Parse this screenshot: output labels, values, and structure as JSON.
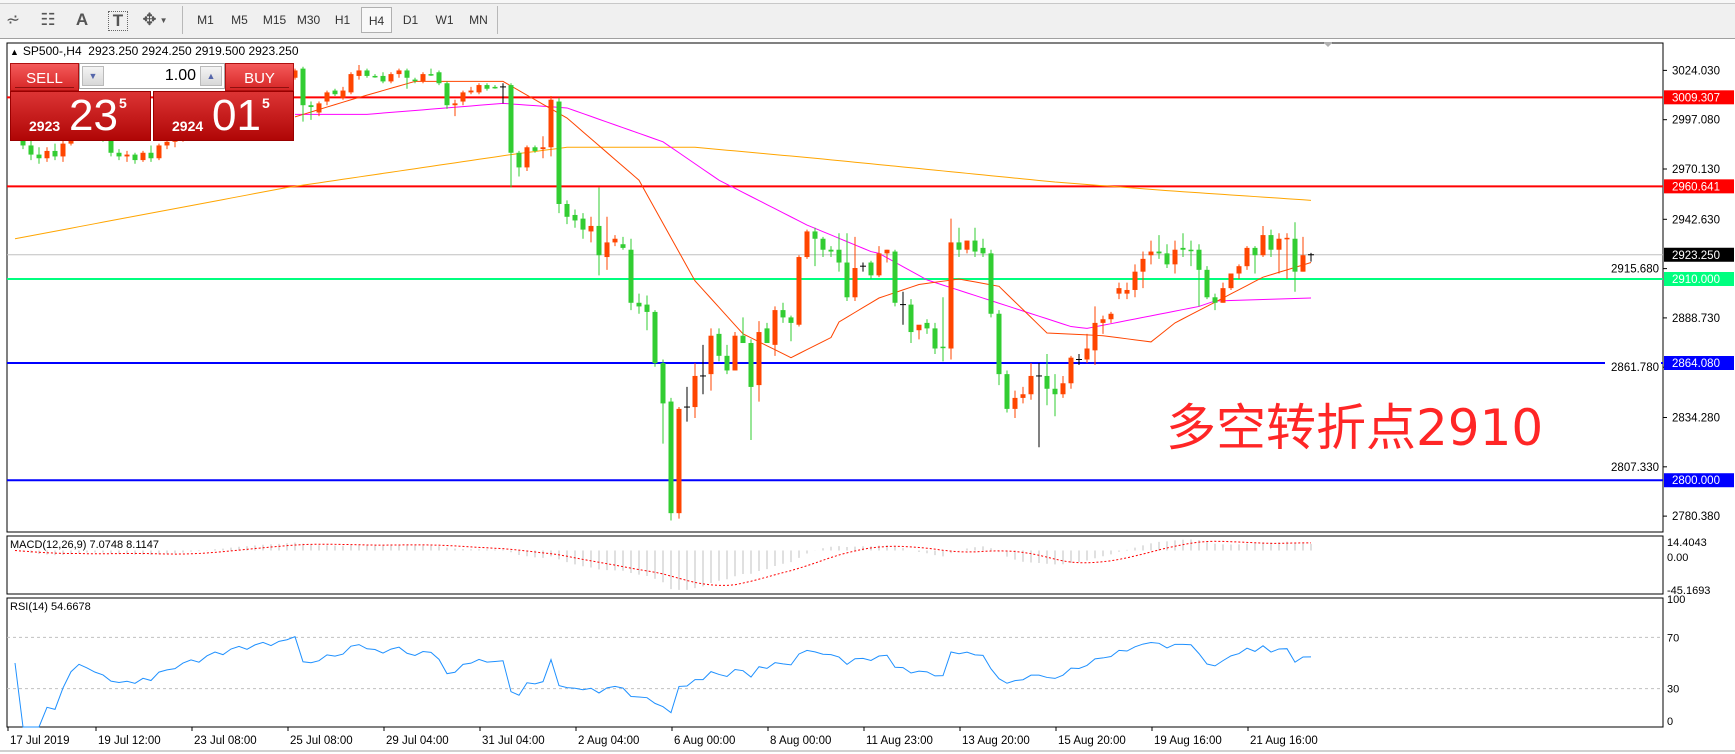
{
  "toolbar": {
    "tools": [
      {
        "icon": "elliott-wave-icon",
        "glyph": "⩫"
      },
      {
        "icon": "fibonacci-grid-icon",
        "glyph": "☷"
      },
      {
        "icon": "text-label-icon",
        "glyph": "A"
      },
      {
        "icon": "text-box-icon",
        "glyph": "T"
      },
      {
        "icon": "arrows-dropdown-icon",
        "glyph": "✥"
      }
    ],
    "timeframes": [
      "M1",
      "M5",
      "M15",
      "M30",
      "H1",
      "H4",
      "D1",
      "W1",
      "MN"
    ],
    "active_timeframe": "H4"
  },
  "chart_header": {
    "symbol": "SP500-,H4",
    "ohlc": "2923.250 2924.250 2919.500 2923.250"
  },
  "trade_panel": {
    "sell_label": "SELL",
    "buy_label": "BUY",
    "lot": "1.00",
    "sell": {
      "prefix": "2923",
      "big": "23",
      "sup": "5"
    },
    "buy": {
      "prefix": "2924",
      "big": "01",
      "sup": "5"
    }
  },
  "annotation": "多空转折点2910",
  "chart_data": {
    "type": "candlestick",
    "colors": {
      "bull": "#FF4500",
      "bear": "#32CD32",
      "doji": "#000000"
    },
    "ylim": [
      2771.7,
      3039.0
    ],
    "candles": [
      [
        3002,
        3008,
        2996,
        2998
      ],
      [
        2998,
        2999,
        2981,
        2983
      ],
      [
        2983,
        2986,
        2975,
        2978
      ],
      [
        2978,
        2982,
        2973,
        2976
      ],
      [
        2976,
        2982,
        2974,
        2980
      ],
      [
        2980,
        2984,
        2975,
        2977
      ],
      [
        2977,
        2986,
        2974,
        2984
      ],
      [
        2984,
        2994,
        2983,
        2992
      ],
      [
        2992,
        2999,
        2989,
        2997
      ],
      [
        2997,
        3000,
        2991,
        2994
      ],
      [
        2994,
        2996,
        2988,
        2990
      ],
      [
        2990,
        2992,
        2985,
        2987
      ],
      [
        2987,
        2988,
        2977,
        2979
      ],
      [
        2979,
        2981,
        2975,
        2977
      ],
      [
        2977,
        2980,
        2974,
        2978
      ],
      [
        2978,
        2979,
        2973,
        2975
      ],
      [
        2975,
        2980,
        2974,
        2979
      ],
      [
        2979,
        2983,
        2974,
        2976
      ],
      [
        2976,
        2984,
        2975,
        2983
      ],
      [
        2983,
        2987,
        2981,
        2985
      ],
      [
        2985,
        2988,
        2982,
        2986
      ],
      [
        2986,
        2993,
        2985,
        2991
      ],
      [
        2991,
        2996,
        2988,
        2994
      ],
      [
        2994,
        2998,
        2990,
        2992
      ],
      [
        2992,
        3000,
        2991,
        2998
      ],
      [
        2998,
        3004,
        2996,
        3002
      ],
      [
        3002,
        3006,
        2998,
        3000
      ],
      [
        3000,
        3008,
        2999,
        3006
      ],
      [
        3006,
        3011,
        3003,
        3009
      ],
      [
        3009,
        3013,
        3005,
        3007
      ],
      [
        3007,
        3014,
        3006,
        3012
      ],
      [
        3012,
        3017,
        3009,
        3015
      ],
      [
        3015,
        3019,
        3011,
        3013
      ],
      [
        3013,
        3020,
        3012,
        3018
      ],
      [
        3018,
        3022,
        3015,
        3020
      ],
      [
        3020,
        3025,
        3019,
        3024
      ],
      [
        3025,
        3026,
        2996,
        3005
      ],
      [
        3005,
        3007,
        2997,
        3004
      ],
      [
        3001,
        3007,
        2999,
        3006
      ],
      [
        3007,
        3013,
        3005,
        3012
      ],
      [
        3013,
        3014,
        3010,
        3011
      ],
      [
        3009,
        3015,
        3008,
        3013
      ],
      [
        3012,
        3023,
        3011,
        3022
      ],
      [
        3021,
        3027,
        3019,
        3024
      ],
      [
        3024,
        3025,
        3020,
        3021
      ],
      [
        3021,
        3022,
        3020,
        3020.5
      ],
      [
        3021,
        3023,
        3017,
        3018
      ],
      [
        3018,
        3023,
        3017,
        3022
      ],
      [
        3022,
        3025,
        3020,
        3024
      ],
      [
        3024,
        3025,
        3014,
        3020
      ],
      [
        3019,
        3020,
        3017,
        3018.5
      ],
      [
        3018,
        3023,
        3017,
        3022
      ],
      [
        3022,
        3025,
        3021,
        3021.5
      ],
      [
        3023,
        3024,
        3016,
        3017
      ],
      [
        3017,
        3018,
        3003,
        3005
      ],
      [
        3005,
        3008,
        2999,
        3006
      ],
      [
        3007,
        3013,
        3005,
        3012
      ],
      [
        3012,
        3015,
        3011,
        3013
      ],
      [
        3012,
        3017,
        3011,
        3016
      ],
      [
        3016,
        3017,
        3013,
        3014
      ],
      [
        3015,
        3016,
        3014,
        3014.5
      ],
      [
        3015,
        3017,
        3006,
        3015
      ],
      [
        3016,
        3017,
        2960,
        2979
      ],
      [
        2979,
        2980,
        2966,
        2971
      ],
      [
        2971,
        2983,
        2969,
        2982
      ],
      [
        2982,
        2983,
        2979,
        2980
      ],
      [
        2981,
        2988,
        2976,
        2982
      ],
      [
        2982,
        3010,
        2977,
        3008
      ],
      [
        3007,
        3009,
        2946,
        2951
      ],
      [
        2951,
        2953,
        2940,
        2944
      ],
      [
        2945,
        2948,
        2938,
        2942
      ],
      [
        2943,
        2946,
        2932,
        2937
      ],
      [
        2936,
        2944,
        2930,
        2939
      ],
      [
        2939,
        2960,
        2912,
        2923
      ],
      [
        2922,
        2944,
        2915,
        2930
      ],
      [
        2930,
        2934,
        2928,
        2932
      ],
      [
        2929,
        2933,
        2926,
        2927
      ],
      [
        2926,
        2932,
        2893,
        2897
      ],
      [
        2897,
        2902,
        2891,
        2895
      ],
      [
        2896,
        2901,
        2882,
        2892
      ],
      [
        2892,
        2893,
        2862,
        2864
      ],
      [
        2864,
        2866,
        2820,
        2842
      ],
      [
        2843,
        2845,
        2778,
        2782
      ],
      [
        2782,
        2840,
        2779,
        2839
      ],
      [
        2840,
        2851,
        2832,
        2840
      ],
      [
        2840,
        2864,
        2834,
        2857
      ],
      [
        2857,
        2874,
        2847,
        2857
      ],
      [
        2858,
        2883,
        2849,
        2879
      ],
      [
        2880,
        2883,
        2865,
        2868
      ],
      [
        2868,
        2874,
        2858,
        2860
      ],
      [
        2860,
        2881,
        2860,
        2879
      ],
      [
        2879,
        2889,
        2875,
        2875
      ],
      [
        2875,
        2877,
        2822,
        2851
      ],
      [
        2852,
        2887,
        2843,
        2881
      ],
      [
        2883,
        2886,
        2875,
        2875
      ],
      [
        2874,
        2895,
        2868,
        2893
      ],
      [
        2893,
        2897,
        2886,
        2889
      ],
      [
        2889,
        2890,
        2876,
        2886
      ],
      [
        2885,
        2923,
        2884,
        2922
      ],
      [
        2922,
        2937,
        2921,
        2936
      ],
      [
        2936,
        2938,
        2917,
        2932
      ],
      [
        2932,
        2933,
        2922,
        2926
      ],
      [
        2926,
        2928,
        2922,
        2925
      ],
      [
        2926,
        2935,
        2914,
        2919
      ],
      [
        2919,
        2935,
        2898,
        2900
      ],
      [
        2900,
        2933,
        2898,
        2916
      ],
      [
        2917,
        2919,
        2914,
        2917
      ],
      [
        2919,
        2920,
        2910,
        2912
      ],
      [
        2912,
        2928,
        2911,
        2924
      ],
      [
        2924,
        2926,
        2919,
        2926
      ],
      [
        2925,
        2926,
        2895,
        2897
      ],
      [
        2896,
        2903,
        2885,
        2896
      ],
      [
        2896,
        2899,
        2875,
        2881
      ],
      [
        2882,
        2884,
        2877,
        2885
      ],
      [
        2886,
        2888,
        2880,
        2883
      ],
      [
        2883,
        2886,
        2869,
        2872
      ],
      [
        2873,
        2900,
        2865,
        2872.5
      ],
      [
        2872,
        2943,
        2866,
        2930
      ],
      [
        2930,
        2938,
        2922,
        2926
      ],
      [
        2926,
        2931,
        2924,
        2931
      ],
      [
        2931,
        2938,
        2922,
        2925
      ],
      [
        2927,
        2932,
        2922,
        2924
      ],
      [
        2924,
        2926,
        2889,
        2891
      ],
      [
        2891,
        2893,
        2852,
        2858
      ],
      [
        2858,
        2860,
        2837,
        2839
      ],
      [
        2839,
        2849,
        2834,
        2845
      ],
      [
        2845,
        2851,
        2842,
        2847
      ],
      [
        2847,
        2864,
        2844,
        2857
      ],
      [
        2857,
        2864,
        2818,
        2857
      ],
      [
        2857,
        2869,
        2841,
        2850
      ],
      [
        2850,
        2858,
        2835,
        2847
      ],
      [
        2847,
        2857,
        2845,
        2853
      ],
      [
        2853,
        2868,
        2850,
        2867
      ],
      [
        2866,
        2869,
        2863,
        2866
      ],
      [
        2866,
        2880,
        2864,
        2872
      ],
      [
        2871,
        2895,
        2863,
        2886
      ],
      [
        2886,
        2890,
        2880,
        2888
      ],
      [
        2888,
        2892,
        2886,
        2891
      ],
      [
        2902,
        2908,
        2899,
        2905
      ],
      [
        2902,
        2908,
        2899,
        2904
      ],
      [
        2904,
        2918,
        2900,
        2914
      ],
      [
        2914,
        2925,
        2905,
        2921
      ],
      [
        2923,
        2931,
        2918,
        2925
      ],
      [
        2925,
        2934,
        2921,
        2924
      ],
      [
        2924,
        2929,
        2916,
        2918
      ],
      [
        2918,
        2931,
        2913,
        2926
      ],
      [
        2927,
        2935,
        2922,
        2926
      ],
      [
        2926,
        2931,
        2917,
        2925.5
      ],
      [
        2926,
        2929,
        2895,
        2915
      ],
      [
        2915,
        2917,
        2899,
        2900
      ],
      [
        2900,
        2902,
        2893,
        2897
      ],
      [
        2897,
        2908,
        2897,
        2905
      ],
      [
        2905,
        2912,
        2904,
        2913
      ],
      [
        2913,
        2918,
        2910,
        2917
      ],
      [
        2917,
        2928,
        2915,
        2927
      ],
      [
        2927,
        2928,
        2913,
        2923
      ],
      [
        2923,
        2939,
        2922,
        2934
      ],
      [
        2934,
        2937,
        2922,
        2926
      ],
      [
        2926,
        2935,
        2913,
        2932
      ],
      [
        2932,
        2935,
        2910,
        2932.5
      ],
      [
        2932,
        2941,
        2903,
        2914
      ],
      [
        2914,
        2933,
        2914,
        2923
      ],
      [
        2923.25,
        2924.25,
        2919.5,
        2923.25
      ]
    ],
    "moving_averages": [
      {
        "color": "#FFA500",
        "points": [
          [
            0,
            2932
          ],
          [
            34,
            2960
          ],
          [
            62,
            2978
          ],
          [
            69,
            2982
          ],
          [
            85,
            2982
          ],
          [
            100,
            2976
          ],
          [
            130,
            2963
          ],
          [
            145,
            2958
          ],
          [
            162,
            2953
          ]
        ]
      },
      {
        "color": "#FF00FF",
        "points": [
          [
            35,
            3000
          ],
          [
            44,
            3000
          ],
          [
            61,
            3006
          ],
          [
            69,
            3003.5
          ],
          [
            81,
            2985
          ],
          [
            88,
            2964
          ],
          [
            99,
            2939.5
          ],
          [
            107,
            2925
          ],
          [
            108,
            2924
          ],
          [
            114,
            2909.5
          ],
          [
            132,
            2884
          ],
          [
            134,
            2883
          ],
          [
            148,
            2895
          ],
          [
            150,
            2898
          ],
          [
            162,
            2899.6
          ]
        ]
      },
      {
        "color": "#FF4500",
        "points": [
          [
            35,
            2998.6
          ],
          [
            42,
            3008
          ],
          [
            50,
            3018
          ],
          [
            61,
            3018
          ],
          [
            69,
            2998
          ],
          [
            78,
            2964
          ],
          [
            85,
            2909
          ],
          [
            91,
            2880
          ],
          [
            97,
            2867
          ],
          [
            102,
            2878
          ],
          [
            103,
            2886.5
          ],
          [
            107,
            2897
          ],
          [
            108,
            2899.6
          ],
          [
            113,
            2907
          ],
          [
            118,
            2910
          ],
          [
            123,
            2906
          ],
          [
            129,
            2880.5
          ],
          [
            136,
            2879
          ],
          [
            142,
            2875.6
          ],
          [
            145,
            2886
          ],
          [
            151,
            2899.6
          ],
          [
            156,
            2911
          ],
          [
            162,
            2919
          ]
        ]
      }
    ],
    "price_ticks": [
      "3024.030",
      "2997.080",
      "2970.130",
      "2942.630",
      "2915.680",
      "2888.730",
      "2861.780",
      "2834.280",
      "2807.330",
      "2780.380"
    ],
    "hlines": [
      {
        "price": 3009.307,
        "label": "3009.307",
        "color": "#FF0000",
        "label_bg": "#FF0000",
        "label_fg": "#FFFFFF"
      },
      {
        "price": 2960.641,
        "label": "2960.641",
        "color": "#FF0000",
        "label_bg": "#FF0000",
        "label_fg": "#FFFFFF"
      },
      {
        "price": 2923.25,
        "label": "2923.250",
        "color": "#C0C0C0",
        "label_bg": "#000000",
        "label_fg": "#FFFFFF"
      },
      {
        "price": 2910.0,
        "label": "2910.000",
        "color": "#00FF7F",
        "label_bg": "#00FF7F",
        "label_fg": "#FFFFFF"
      },
      {
        "price": 2864.08,
        "label": "2864.080",
        "color": "#0000FF",
        "label_bg": "#0000FF",
        "label_fg": "#FFFFFF"
      },
      {
        "price": 2800.0,
        "label": "2800.000",
        "color": "#0000FF",
        "label_bg": "#0000FF",
        "label_fg": "#FFFFFF"
      }
    ],
    "time_labels": [
      {
        "bar": 0,
        "label": "17 Jul 2019"
      },
      {
        "bar": 11,
        "label": "19 Jul 12:00"
      },
      {
        "bar": 23,
        "label": "23 Jul 08:00"
      },
      {
        "bar": 35,
        "label": "25 Jul 08:00"
      },
      {
        "bar": 47,
        "label": "29 Jul 04:00"
      },
      {
        "bar": 59,
        "label": "31 Jul 04:00"
      },
      {
        "bar": 71,
        "label": "2 Aug 04:00"
      },
      {
        "bar": 83,
        "label": "6 Aug 00:00"
      },
      {
        "bar": 95,
        "label": "8 Aug 00:00"
      },
      {
        "bar": 107,
        "label": "11 Aug 23:00"
      },
      {
        "bar": 119,
        "label": "13 Aug 20:00"
      },
      {
        "bar": 131,
        "label": "15 Aug 20:00"
      },
      {
        "bar": 143,
        "label": "19 Aug 16:00"
      },
      {
        "bar": 155,
        "label": "21 Aug 16:00"
      }
    ],
    "macd": {
      "label": "MACD(12,26,9) 7.0748 8.1147",
      "ticks": [
        "14.4043",
        "0.00",
        "-45.1693"
      ],
      "range": [
        -45.1693,
        14.4043
      ],
      "hist_color": "#C0C0C0",
      "signal_color": "#FF0000"
    },
    "rsi": {
      "label": "RSI(14) 54.6678",
      "ticks": [
        "100",
        "70",
        "30",
        "0"
      ],
      "levels": [
        70,
        30
      ],
      "color": "#1E90FF"
    }
  }
}
